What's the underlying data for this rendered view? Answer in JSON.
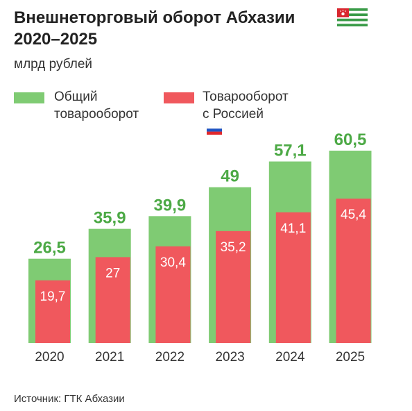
{
  "title": {
    "line1": "Внешнеторговый оборот Абхазии",
    "line2": "2020–2025"
  },
  "flag_icon": "abkhazia-flag-icon",
  "unit": "млрд рублей",
  "legend": {
    "total": {
      "line1": "Общий",
      "line2": "товарооборот",
      "color": "#7fcb73"
    },
    "russia": {
      "line1": "Товарооборот",
      "line2": "с Россией",
      "icon": "russia-flag-icon",
      "color": "#f0585d"
    }
  },
  "source": "Источник: ГТК Абхазии",
  "colors": {
    "total_bar": "#7fcb73",
    "russia_bar": "#f0585d",
    "total_label": "#4ca945",
    "russia_label": "#ffffff"
  },
  "chart_data": {
    "type": "bar",
    "categories": [
      "2020",
      "2021",
      "2022",
      "2023",
      "2024",
      "2025"
    ],
    "series": [
      {
        "name": "Общий товарооборот",
        "values": [
          26.5,
          35.9,
          39.9,
          49,
          57.1,
          60.5
        ],
        "labels": [
          "26,5",
          "35,9",
          "39,9",
          "49",
          "57,1",
          "60,5"
        ]
      },
      {
        "name": "Товарооборот с Россией",
        "values": [
          19.7,
          27,
          30.4,
          35.2,
          41.1,
          45.4
        ],
        "labels": [
          "19,7",
          "27",
          "30,4",
          "35,2",
          "41,1",
          "45,4"
        ]
      }
    ],
    "title": "Внешнеторговый оборот Абхазии 2020–2025",
    "ylabel": "млрд рублей",
    "ylim": [
      0,
      60.5
    ],
    "grid": false,
    "legend": "top-left"
  }
}
